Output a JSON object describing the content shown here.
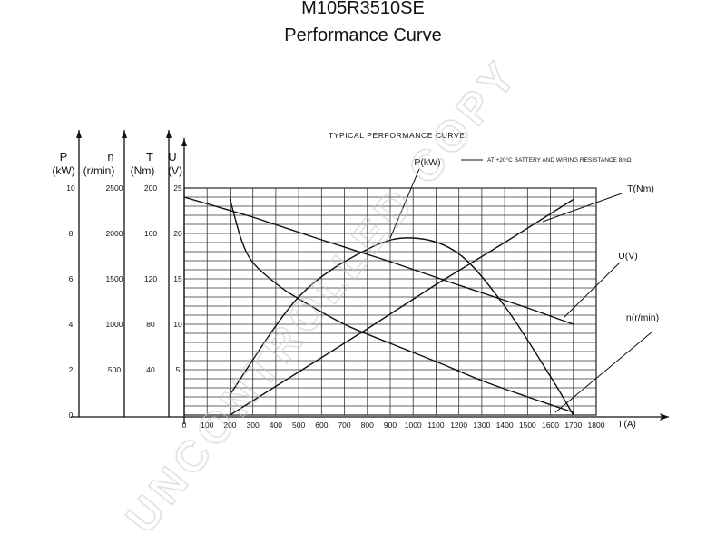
{
  "header": {
    "title": "M105R3510SE",
    "subtitle": "Performance Curve"
  },
  "watermark": "UNCONTROLLED COPY",
  "chart_data": {
    "type": "line",
    "title": "TYPICAL PERFORMANCE CURVE",
    "note": "AT +20°C  BATTERY AND WIRING RESISTANCE 8mΩ",
    "xlabel": "I (A)",
    "xlim": [
      0,
      1800
    ],
    "x_ticks": [
      "0",
      "100",
      "200",
      "300",
      "400",
      "500",
      "600",
      "700",
      "800",
      "900",
      "1000",
      "1100",
      "1200",
      "1300",
      "1400",
      "1500",
      "1600",
      "1700",
      "1800"
    ],
    "grid": true,
    "y_axes": [
      {
        "name": "P",
        "unit": "(kW)",
        "range": [
          0,
          10
        ],
        "ticks": [
          "0",
          "2",
          "4",
          "6",
          "8",
          "10"
        ]
      },
      {
        "name": "n",
        "unit": "(r/min)",
        "range": [
          0,
          2500
        ],
        "ticks": [
          "500",
          "1000",
          "1500",
          "2000",
          "2500"
        ]
      },
      {
        "name": "T",
        "unit": "(Nm)",
        "range": [
          0,
          200
        ],
        "ticks": [
          "40",
          "80",
          "120",
          "160",
          "200"
        ]
      },
      {
        "name": "U",
        "unit": "(V)",
        "range": [
          0,
          25
        ],
        "ticks": [
          "5",
          "10",
          "15",
          "20",
          "25"
        ]
      }
    ],
    "series": [
      {
        "name": "P(kW)",
        "axis": "P",
        "x": [
          200,
          500,
          800,
          1000,
          1200,
          1400,
          1600,
          1700
        ],
        "values": [
          0.9,
          5.2,
          7.3,
          7.8,
          7.1,
          4.8,
          1.7,
          0.0
        ]
      },
      {
        "name": "T(Nm)",
        "axis": "T",
        "x": [
          200,
          500,
          800,
          1100,
          1400,
          1700
        ],
        "values": [
          0,
          38,
          76,
          115,
          152,
          190
        ]
      },
      {
        "name": "U(V)",
        "axis": "U",
        "x": [
          0,
          300,
          600,
          900,
          1200,
          1500,
          1700
        ],
        "values": [
          24.0,
          21.8,
          19.3,
          16.9,
          14.3,
          11.8,
          10.0
        ]
      },
      {
        "name": "n(r/min)",
        "axis": "n",
        "x": [
          200,
          250,
          300,
          400,
          500,
          700,
          900,
          1100,
          1300,
          1500,
          1700
        ],
        "values": [
          2380,
          1930,
          1680,
          1450,
          1280,
          1000,
          790,
          590,
          380,
          200,
          30
        ]
      }
    ]
  }
}
